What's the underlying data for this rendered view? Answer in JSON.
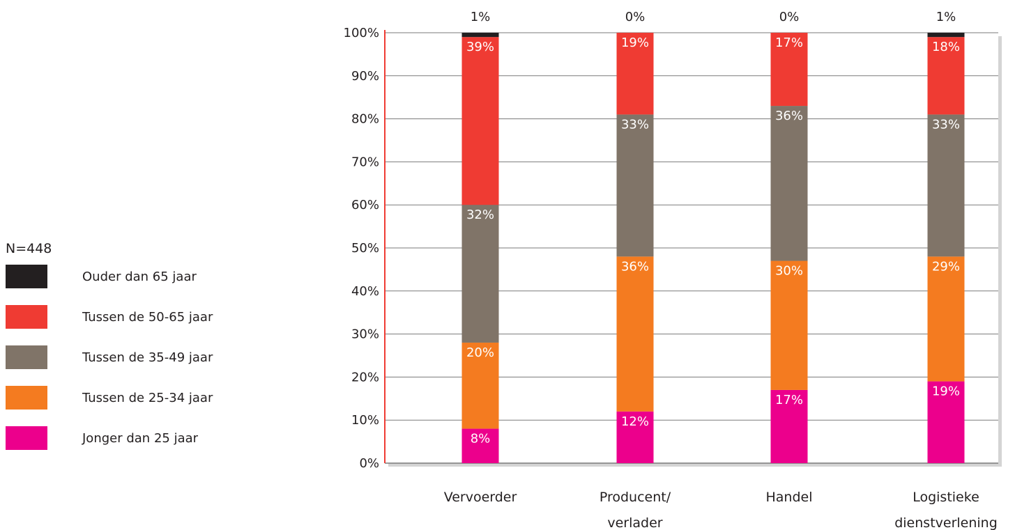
{
  "legend": {
    "n_label": "N=448",
    "items": [
      {
        "label": "Ouder dan 65 jaar",
        "color": "#231f20"
      },
      {
        "label": "Tussen de 50-65 jaar",
        "color": "#ef3b33"
      },
      {
        "label": "Tussen de 35-49 jaar",
        "color": "#807468"
      },
      {
        "label": "Tussen de 25-34 jaar",
        "color": "#f47b20"
      },
      {
        "label": "Jonger dan 25 jaar",
        "color": "#ec008c"
      }
    ]
  },
  "chart_data": {
    "type": "bar",
    "stacked": true,
    "grid": true,
    "ylim": [
      0,
      100
    ],
    "ytick_labels": [
      "0%",
      "10%",
      "20%",
      "30%",
      "40%",
      "50%",
      "60%",
      "70%",
      "80%",
      "90%",
      "100%"
    ],
    "categories": [
      [
        "Vervoerder"
      ],
      [
        "Producent/",
        "verlader"
      ],
      [
        "Handel"
      ],
      [
        "Logistieke",
        "dienstverlening"
      ]
    ],
    "series": [
      {
        "name": "Jonger dan 25 jaar",
        "color": "#ec008c",
        "values": [
          8,
          12,
          17,
          19
        ],
        "labels": [
          "8%",
          "12%",
          "17%",
          "19%"
        ]
      },
      {
        "name": "Tussen de 25-34 jaar",
        "color": "#f47b20",
        "values": [
          20,
          36,
          30,
          29
        ],
        "labels": [
          "20%",
          "36%",
          "30%",
          "29%"
        ]
      },
      {
        "name": "Tussen de 35-49 jaar",
        "color": "#807468",
        "values": [
          32,
          33,
          36,
          33
        ],
        "labels": [
          "32%",
          "33%",
          "36%",
          "33%"
        ]
      },
      {
        "name": "Tussen de 50-65 jaar",
        "color": "#ef3b33",
        "values": [
          39,
          19,
          17,
          18
        ],
        "labels": [
          "39%",
          "19%",
          "17%",
          "18%"
        ]
      },
      {
        "name": "Ouder dan 65 jaar",
        "color": "#231f20",
        "values": [
          1,
          0,
          0,
          1
        ],
        "labels": [
          "1%",
          "0%",
          "0%",
          "1%"
        ]
      }
    ]
  }
}
